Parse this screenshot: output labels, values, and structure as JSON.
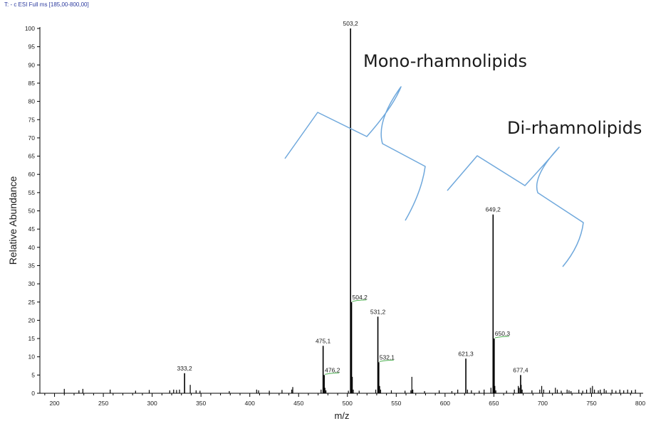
{
  "header": {
    "scan_info": "T: - c ESI Full ms [185,00-800,00]"
  },
  "annotations": {
    "mono": "Mono-rhamnolipids",
    "di": "Di-rhamnolipids"
  },
  "chart_data": {
    "type": "bar",
    "subtype": "mass-spectrum",
    "title": "",
    "xlabel": "m/z",
    "ylabel": "Relative Abundance",
    "xlim": [
      185,
      800
    ],
    "ylim": [
      0,
      100
    ],
    "x_ticks": [
      200,
      250,
      300,
      350,
      400,
      450,
      500,
      550,
      600,
      650,
      700,
      750,
      800
    ],
    "y_ticks": [
      0,
      5,
      10,
      15,
      20,
      25,
      30,
      35,
      40,
      45,
      50,
      55,
      60,
      65,
      70,
      75,
      80,
      85,
      90,
      95,
      100
    ],
    "grid": false,
    "labeled_peaks": [
      {
        "mz": 333.2,
        "label": "333,2",
        "intensity": 5.5
      },
      {
        "mz": 475.1,
        "label": "475,1",
        "intensity": 13
      },
      {
        "mz": 476.2,
        "label": "476,2",
        "intensity": 5,
        "underline_color": "#4caf50"
      },
      {
        "mz": 503.2,
        "label": "503,2",
        "intensity": 100
      },
      {
        "mz": 504.2,
        "label": "504,2",
        "intensity": 25,
        "underline_color": "#4caf50"
      },
      {
        "mz": 531.2,
        "label": "531,2",
        "intensity": 21
      },
      {
        "mz": 532.1,
        "label": "532,1",
        "intensity": 8.5,
        "underline_color": "#4caf50"
      },
      {
        "mz": 621.3,
        "label": "621,3",
        "intensity": 9.5
      },
      {
        "mz": 649.2,
        "label": "649,2",
        "intensity": 49
      },
      {
        "mz": 650.3,
        "label": "650,3",
        "intensity": 15,
        "underline_color": "#4caf50"
      },
      {
        "mz": 677.4,
        "label": "677,4",
        "intensity": 5
      }
    ],
    "minor_peaks": [
      [
        210,
        1.2
      ],
      [
        225,
        0.8
      ],
      [
        229,
        1.2
      ],
      [
        257,
        1.0
      ],
      [
        283,
        0.7
      ],
      [
        297,
        0.9
      ],
      [
        318,
        0.8
      ],
      [
        322,
        1.0
      ],
      [
        325,
        0.9
      ],
      [
        328,
        1.0
      ],
      [
        339,
        2.3
      ],
      [
        345,
        0.8
      ],
      [
        349,
        0.7
      ],
      [
        379,
        0.6
      ],
      [
        407,
        1.0
      ],
      [
        409,
        0.8
      ],
      [
        420,
        0.7
      ],
      [
        433,
        0.9
      ],
      [
        443,
        1.0
      ],
      [
        444,
        1.7
      ],
      [
        473,
        1.0
      ],
      [
        477,
        1.5
      ],
      [
        478,
        0.8
      ],
      [
        501,
        0.7
      ],
      [
        505,
        4.5
      ],
      [
        506,
        1.0
      ],
      [
        512,
        0.7
      ],
      [
        529,
        1.0
      ],
      [
        533,
        2.0
      ],
      [
        534,
        1.0
      ],
      [
        545,
        0.8
      ],
      [
        559,
        0.7
      ],
      [
        565,
        0.8
      ],
      [
        566,
        4.5
      ],
      [
        567,
        1.0
      ],
      [
        579,
        0.6
      ],
      [
        594,
        0.8
      ],
      [
        607,
        0.6
      ],
      [
        613,
        1.0
      ],
      [
        623,
        1.0
      ],
      [
        627,
        0.8
      ],
      [
        635,
        0.7
      ],
      [
        640,
        1.0
      ],
      [
        647,
        1.5
      ],
      [
        651,
        2.0
      ],
      [
        652,
        0.8
      ],
      [
        663,
        0.7
      ],
      [
        671,
        1.0
      ],
      [
        675,
        2.0
      ],
      [
        676,
        1.5
      ],
      [
        678,
        2.3
      ],
      [
        679,
        1.0
      ],
      [
        689,
        0.8
      ],
      [
        697,
        1.0
      ],
      [
        699,
        2.0
      ],
      [
        701,
        1.0
      ],
      [
        707,
        0.8
      ],
      [
        713,
        1.5
      ],
      [
        715,
        1.0
      ],
      [
        719,
        0.7
      ],
      [
        725,
        1.0
      ],
      [
        727,
        0.8
      ],
      [
        729,
        0.6
      ],
      [
        737,
        1.0
      ],
      [
        741,
        0.7
      ],
      [
        745,
        1.0
      ],
      [
        749,
        1.5
      ],
      [
        751,
        2.0
      ],
      [
        753,
        1.0
      ],
      [
        757,
        0.8
      ],
      [
        759,
        1.0
      ],
      [
        763,
        1.2
      ],
      [
        765,
        0.8
      ],
      [
        771,
        1.0
      ],
      [
        775,
        0.7
      ],
      [
        779,
        1.0
      ],
      [
        783,
        0.8
      ],
      [
        787,
        1.0
      ],
      [
        791,
        0.8
      ],
      [
        795,
        1.0
      ]
    ]
  }
}
